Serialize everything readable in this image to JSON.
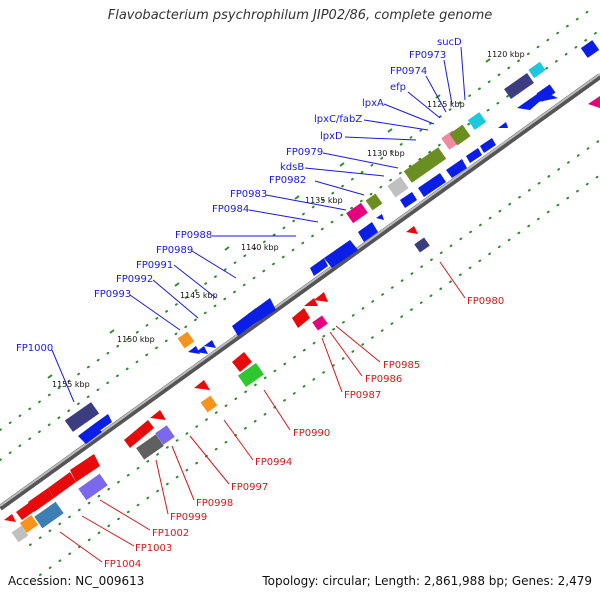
{
  "title": "Flavobacterium psychrophilum JIP02/86, complete genome",
  "footer": {
    "accession": "Accession: NC_009613",
    "topology": "Topology: circular; Length: 2,861,988 bp; Genes: 2,479"
  },
  "colors": {
    "backbone": "#808080",
    "forward_label": "#1a1adb",
    "reverse_label": "#d11a1a",
    "dots": "#2e8b2e",
    "cds_forward": "#0a1ee6",
    "cds_reverse": "#e60a0a"
  },
  "kbp_labels": [
    "1120 kbp",
    "1125 kbp",
    "1130 kbp",
    "1135 kbp",
    "1140 kbp",
    "1145 kbp",
    "1150 kbp",
    "1155 kbp"
  ],
  "forward_labels": [
    "sucD",
    "FP0973",
    "FP0974",
    "efp",
    "lpxA",
    "lpxC/fabZ",
    "lpxD",
    "FP0979",
    "kdsB",
    "FP0982",
    "FP0983",
    "FP0984",
    "FP0988",
    "FP0989",
    "FP0991",
    "FP0992",
    "FP0993",
    "FP1000"
  ],
  "reverse_labels": [
    "FP0980",
    "FP0985",
    "FP0986",
    "FP0987",
    "FP0990",
    "FP0994",
    "FP0997",
    "FP0998",
    "FP0999",
    "FP1002",
    "FP1003",
    "FP1004"
  ]
}
